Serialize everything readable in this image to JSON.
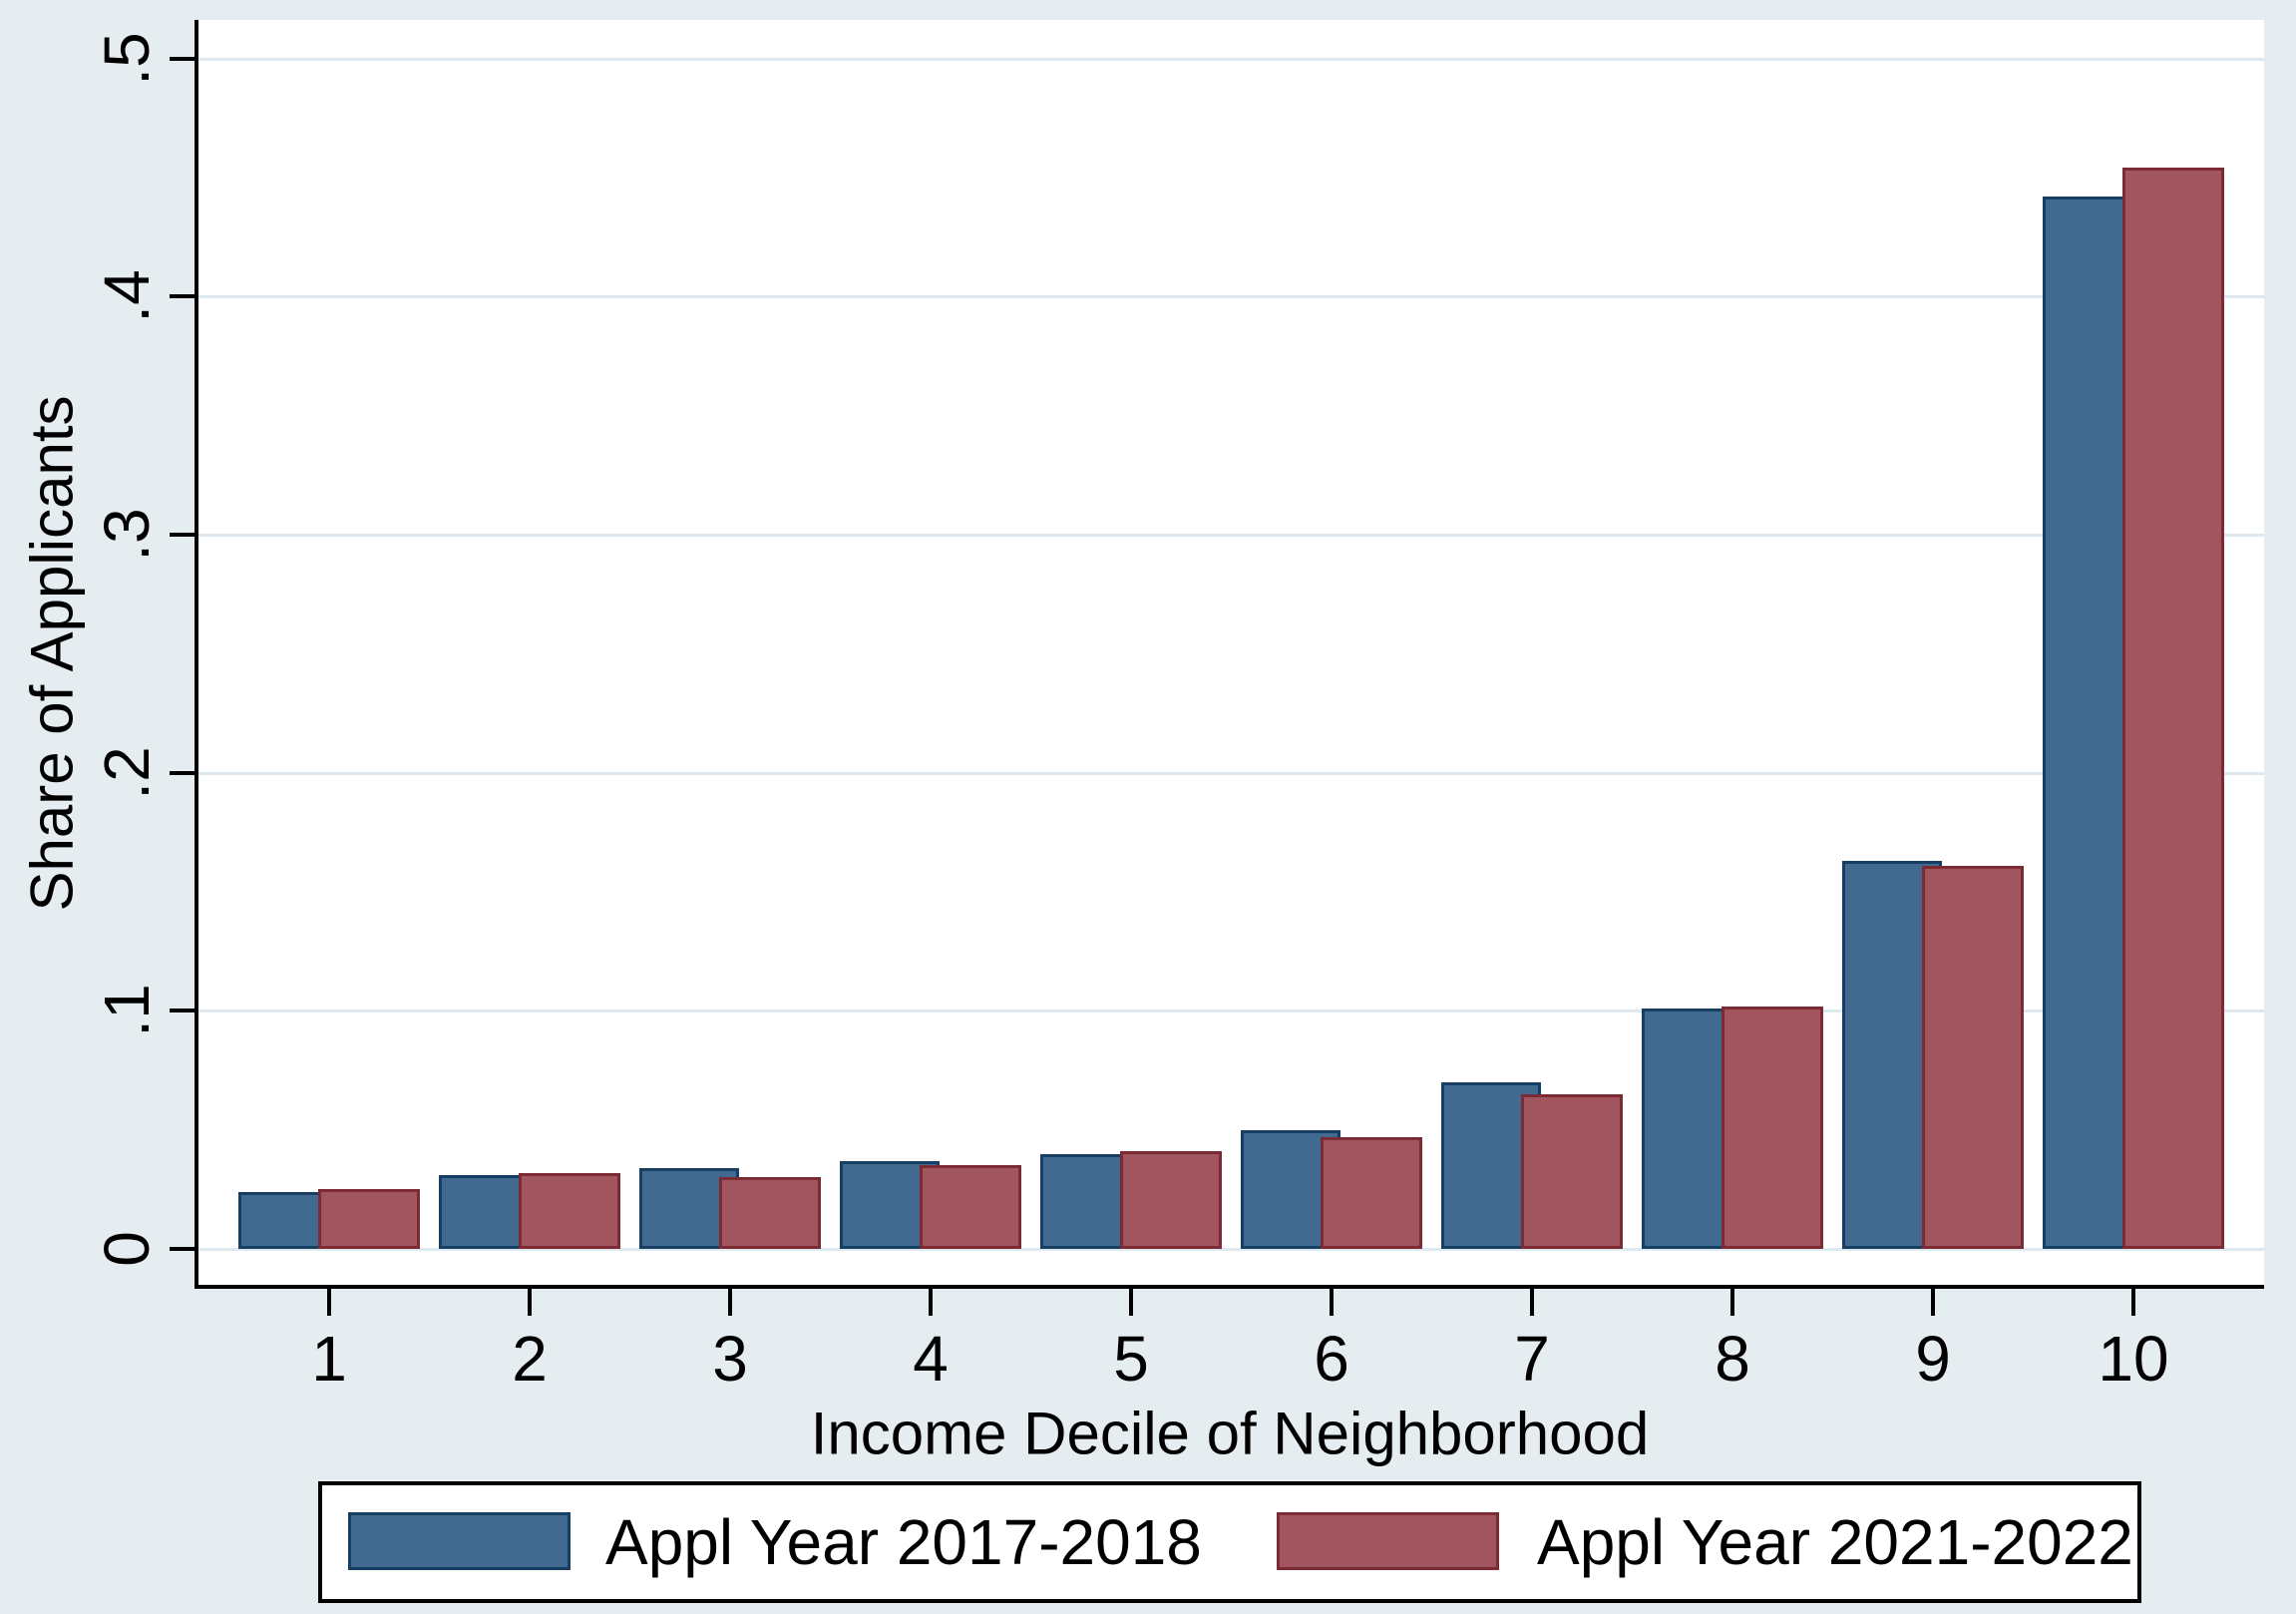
{
  "figure": {
    "background_color": "#e5edf1",
    "plot_background_color": "#ffffff",
    "grid_color": "#dde9ef",
    "axis_color": "#000000"
  },
  "y_axis": {
    "title": "Share of Applicants",
    "ticks": [
      {
        "value": 0.0,
        "label": "0"
      },
      {
        "value": 0.1,
        "label": ".1"
      },
      {
        "value": 0.2,
        "label": ".2"
      },
      {
        "value": 0.3,
        "label": ".3"
      },
      {
        "value": 0.4,
        "label": ".4"
      },
      {
        "value": 0.5,
        "label": ".5"
      }
    ]
  },
  "x_axis": {
    "title": "Income Decile of Neighborhood",
    "tick_labels": [
      "1",
      "2",
      "3",
      "4",
      "5",
      "6",
      "7",
      "8",
      "9",
      "10"
    ]
  },
  "legend": {
    "entries": [
      {
        "label": "Appl Year 2017-2018",
        "fill": "#426a90",
        "border": "#173f63"
      },
      {
        "label": "Appl Year 2021-2022",
        "fill": "#a1565f",
        "border": "#7c2b34"
      }
    ]
  },
  "chart_data": {
    "type": "bar",
    "categories": [
      "1",
      "2",
      "3",
      "4",
      "5",
      "6",
      "7",
      "8",
      "9",
      "10"
    ],
    "series": [
      {
        "name": "Appl Year 2017-2018",
        "color": "#426a90",
        "values": [
          0.024,
          0.031,
          0.034,
          0.037,
          0.04,
          0.05,
          0.07,
          0.101,
          0.163,
          0.442
        ]
      },
      {
        "name": "Appl Year 2021-2022",
        "color": "#a1565f",
        "values": [
          0.025,
          0.032,
          0.03,
          0.035,
          0.041,
          0.047,
          0.065,
          0.102,
          0.161,
          0.454
        ]
      }
    ],
    "title": "",
    "xlabel": "Income Decile of Neighborhood",
    "ylabel": "Share of Applicants",
    "ylim": [
      0,
      0.5
    ],
    "grid": true,
    "legend_position": "bottom"
  }
}
